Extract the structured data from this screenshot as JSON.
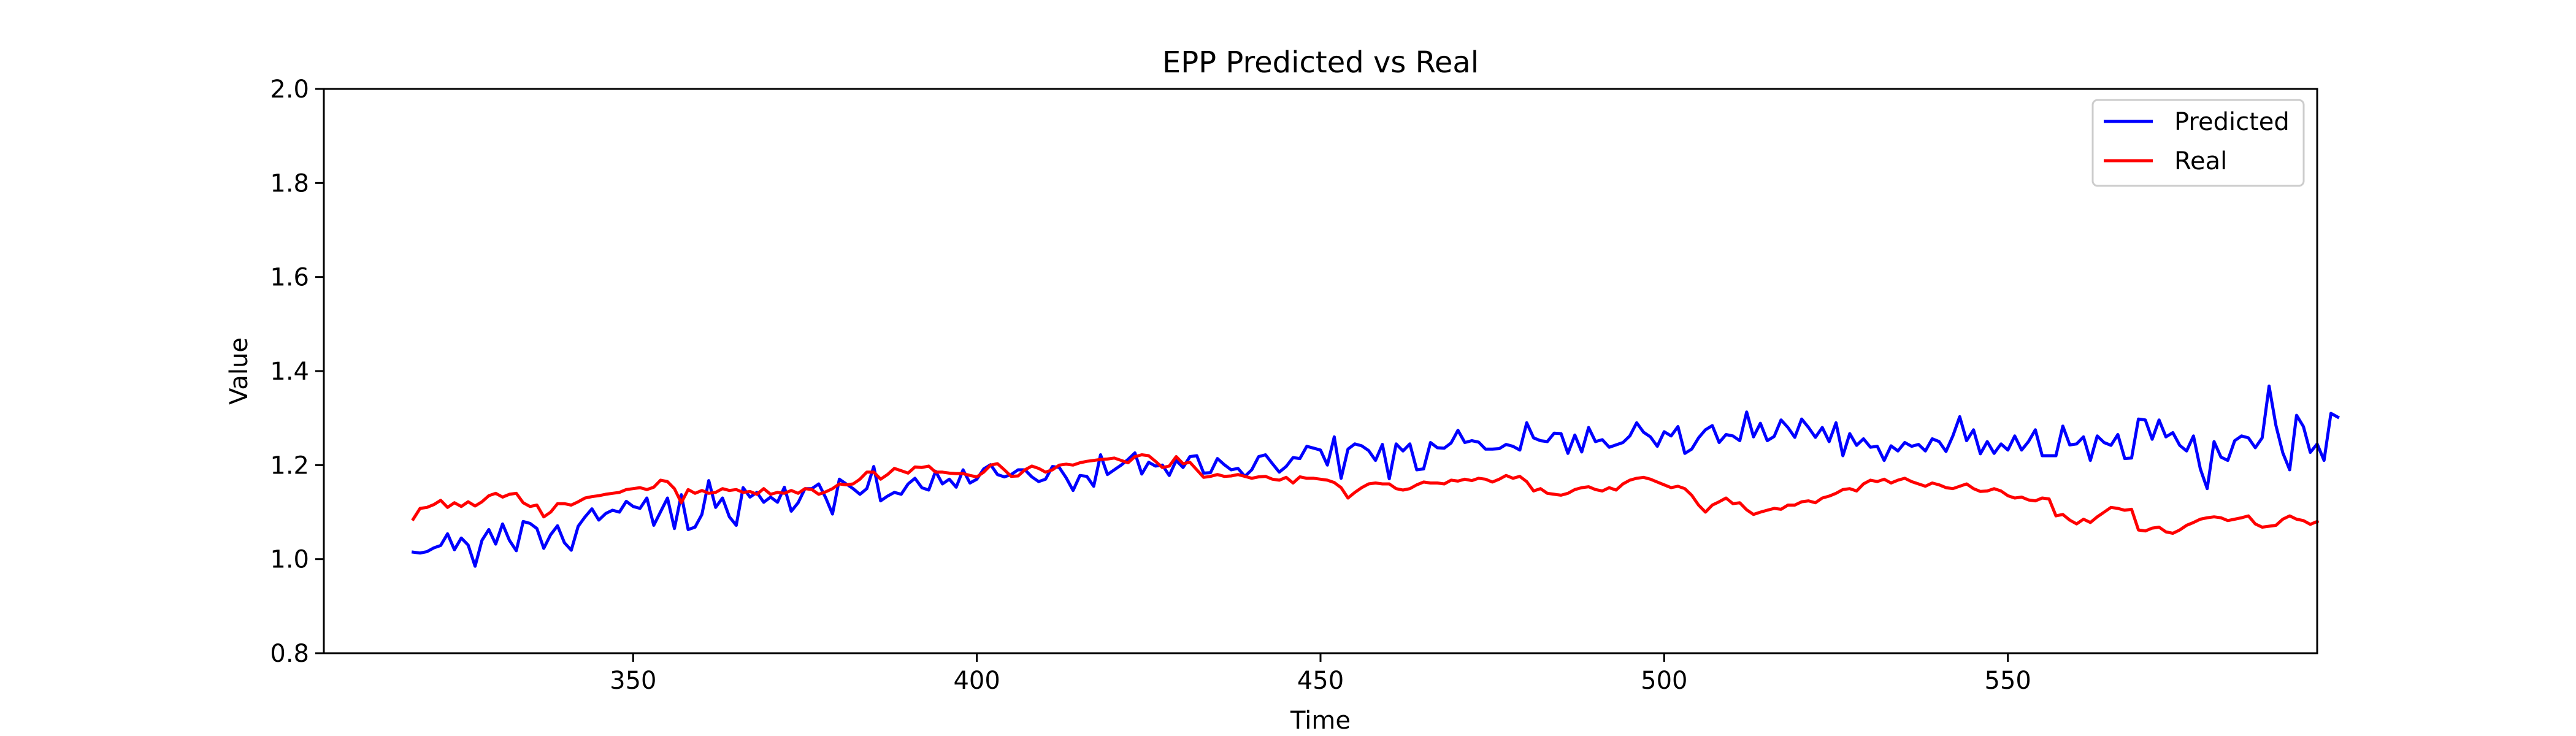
{
  "chart_data": {
    "type": "line",
    "title": "EPP Predicted vs Real",
    "xlabel": "Time",
    "ylabel": "Value",
    "xlim": [
      305,
      595
    ],
    "ylim": [
      0.8,
      2.0
    ],
    "xticks": [
      350,
      400,
      450,
      500,
      550
    ],
    "yticks": [
      0.8,
      1.0,
      1.2,
      1.4,
      1.6,
      1.8,
      2.0
    ],
    "xtick_labels": [
      "350",
      "400",
      "450",
      "500",
      "550"
    ],
    "ytick_labels": [
      "0.8",
      "1.0",
      "1.2",
      "1.4",
      "1.6",
      "1.8",
      "2.0"
    ],
    "grid": false,
    "legend_position": "top-right",
    "x_start": 318,
    "x_step": 1,
    "series": [
      {
        "name": "Predicted",
        "color": "#0000ff",
        "values": [
          1.015,
          1.013,
          1.016,
          1.024,
          1.029,
          1.054,
          1.02,
          1.045,
          1.03,
          0.985,
          1.04,
          1.063,
          1.032,
          1.075,
          1.04,
          1.018,
          1.08,
          1.076,
          1.065,
          1.023,
          1.052,
          1.071,
          1.035,
          1.019,
          1.07,
          1.09,
          1.107,
          1.083,
          1.097,
          1.104,
          1.1,
          1.123,
          1.112,
          1.108,
          1.13,
          1.072,
          1.101,
          1.13,
          1.065,
          1.137,
          1.063,
          1.068,
          1.095,
          1.167,
          1.11,
          1.13,
          1.09,
          1.072,
          1.152,
          1.132,
          1.142,
          1.121,
          1.132,
          1.121,
          1.153,
          1.102,
          1.12,
          1.15,
          1.15,
          1.16,
          1.131,
          1.096,
          1.17,
          1.16,
          1.15,
          1.138,
          1.15,
          1.197,
          1.124,
          1.134,
          1.142,
          1.138,
          1.16,
          1.172,
          1.152,
          1.147,
          1.187,
          1.16,
          1.17,
          1.153,
          1.19,
          1.162,
          1.17,
          1.192,
          1.201,
          1.18,
          1.175,
          1.18,
          1.19,
          1.19,
          1.175,
          1.165,
          1.17,
          1.197,
          1.195,
          1.173,
          1.146,
          1.178,
          1.176,
          1.155,
          1.222,
          1.18,
          1.19,
          1.2,
          1.212,
          1.226,
          1.181,
          1.206,
          1.198,
          1.2,
          1.178,
          1.21,
          1.195,
          1.218,
          1.22,
          1.183,
          1.184,
          1.214,
          1.201,
          1.19,
          1.193,
          1.176,
          1.19,
          1.218,
          1.222,
          1.203,
          1.185,
          1.197,
          1.216,
          1.214,
          1.24,
          1.236,
          1.232,
          1.2,
          1.26,
          1.172,
          1.234,
          1.245,
          1.241,
          1.231,
          1.21,
          1.244,
          1.171,
          1.245,
          1.23,
          1.245,
          1.19,
          1.192,
          1.248,
          1.237,
          1.236,
          1.247,
          1.274,
          1.248,
          1.252,
          1.249,
          1.234,
          1.234,
          1.235,
          1.244,
          1.24,
          1.232,
          1.29,
          1.258,
          1.252,
          1.25,
          1.268,
          1.267,
          1.225,
          1.264,
          1.228,
          1.28,
          1.25,
          1.254,
          1.238,
          1.243,
          1.248,
          1.262,
          1.29,
          1.27,
          1.26,
          1.24,
          1.271,
          1.262,
          1.282,
          1.225,
          1.234,
          1.258,
          1.275,
          1.284,
          1.248,
          1.265,
          1.262,
          1.252,
          1.313,
          1.26,
          1.289,
          1.252,
          1.261,
          1.296,
          1.28,
          1.259,
          1.298,
          1.28,
          1.259,
          1.28,
          1.25,
          1.29,
          1.22,
          1.267,
          1.242,
          1.256,
          1.238,
          1.24,
          1.21,
          1.241,
          1.23,
          1.248,
          1.24,
          1.244,
          1.23,
          1.256,
          1.25,
          1.229,
          1.262,
          1.303,
          1.252,
          1.275,
          1.224,
          1.25,
          1.225,
          1.245,
          1.232,
          1.262,
          1.232,
          1.25,
          1.275,
          1.22,
          1.22,
          1.22,
          1.283,
          1.243,
          1.245,
          1.26,
          1.21,
          1.262,
          1.248,
          1.242,
          1.265,
          1.214,
          1.215,
          1.298,
          1.296,
          1.255,
          1.296,
          1.26,
          1.269,
          1.242,
          1.23,
          1.262,
          1.192,
          1.15,
          1.25,
          1.217,
          1.21,
          1.252,
          1.262,
          1.258,
          1.237,
          1.258,
          1.368,
          1.284,
          1.226,
          1.19,
          1.306,
          1.282,
          1.227,
          1.245,
          1.21,
          1.31,
          1.302
        ]
      },
      {
        "name": "Real",
        "color": "#ff0000",
        "values": [
          1.085,
          1.108,
          1.11,
          1.116,
          1.125,
          1.11,
          1.12,
          1.112,
          1.122,
          1.113,
          1.122,
          1.135,
          1.14,
          1.132,
          1.138,
          1.14,
          1.12,
          1.112,
          1.115,
          1.09,
          1.1,
          1.118,
          1.118,
          1.115,
          1.122,
          1.13,
          1.133,
          1.135,
          1.138,
          1.14,
          1.142,
          1.148,
          1.15,
          1.152,
          1.148,
          1.153,
          1.168,
          1.165,
          1.15,
          1.12,
          1.148,
          1.14,
          1.146,
          1.14,
          1.142,
          1.15,
          1.146,
          1.148,
          1.142,
          1.144,
          1.138,
          1.15,
          1.138,
          1.142,
          1.14,
          1.146,
          1.14,
          1.15,
          1.148,
          1.138,
          1.143,
          1.15,
          1.16,
          1.158,
          1.16,
          1.17,
          1.185,
          1.185,
          1.17,
          1.18,
          1.193,
          1.188,
          1.183,
          1.196,
          1.195,
          1.198,
          1.185,
          1.185,
          1.183,
          1.182,
          1.182,
          1.178,
          1.175,
          1.185,
          1.2,
          1.203,
          1.19,
          1.176,
          1.177,
          1.19,
          1.198,
          1.193,
          1.185,
          1.19,
          1.2,
          1.202,
          1.2,
          1.205,
          1.208,
          1.21,
          1.212,
          1.213,
          1.215,
          1.21,
          1.205,
          1.218,
          1.222,
          1.22,
          1.208,
          1.195,
          1.198,
          1.218,
          1.203,
          1.206,
          1.19,
          1.174,
          1.176,
          1.18,
          1.176,
          1.177,
          1.18,
          1.176,
          1.172,
          1.175,
          1.176,
          1.17,
          1.168,
          1.174,
          1.162,
          1.175,
          1.172,
          1.172,
          1.17,
          1.168,
          1.163,
          1.152,
          1.13,
          1.142,
          1.152,
          1.16,
          1.162,
          1.16,
          1.16,
          1.15,
          1.147,
          1.15,
          1.158,
          1.164,
          1.162,
          1.162,
          1.16,
          1.168,
          1.166,
          1.17,
          1.167,
          1.172,
          1.17,
          1.164,
          1.17,
          1.178,
          1.172,
          1.176,
          1.165,
          1.145,
          1.15,
          1.14,
          1.138,
          1.136,
          1.14,
          1.148,
          1.152,
          1.154,
          1.148,
          1.145,
          1.152,
          1.147,
          1.16,
          1.168,
          1.172,
          1.174,
          1.17,
          1.164,
          1.158,
          1.152,
          1.155,
          1.15,
          1.136,
          1.115,
          1.1,
          1.115,
          1.122,
          1.13,
          1.118,
          1.12,
          1.105,
          1.095,
          1.1,
          1.104,
          1.108,
          1.106,
          1.115,
          1.115,
          1.122,
          1.124,
          1.12,
          1.13,
          1.134,
          1.14,
          1.148,
          1.15,
          1.145,
          1.16,
          1.168,
          1.165,
          1.17,
          1.162,
          1.168,
          1.172,
          1.165,
          1.16,
          1.155,
          1.162,
          1.158,
          1.152,
          1.15,
          1.155,
          1.16,
          1.15,
          1.144,
          1.145,
          1.15,
          1.145,
          1.135,
          1.13,
          1.132,
          1.126,
          1.124,
          1.13,
          1.128,
          1.092,
          1.095,
          1.083,
          1.075,
          1.085,
          1.078,
          1.09,
          1.1,
          1.11,
          1.108,
          1.104,
          1.106,
          1.062,
          1.06,
          1.066,
          1.068,
          1.058,
          1.055,
          1.062,
          1.072,
          1.078,
          1.085,
          1.088,
          1.09,
          1.088,
          1.082,
          1.085,
          1.088,
          1.092,
          1.075,
          1.068,
          1.07,
          1.072,
          1.085,
          1.092,
          1.085,
          1.082,
          1.074,
          1.08
        ]
      }
    ]
  }
}
